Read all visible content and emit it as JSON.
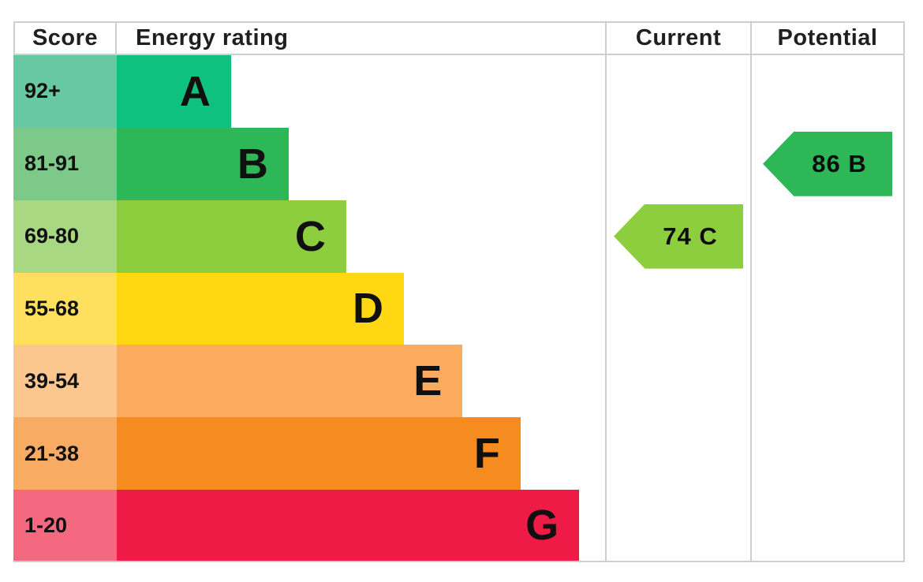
{
  "header": {
    "score": "Score",
    "energy_rating": "Energy rating",
    "current": "Current",
    "potential": "Potential"
  },
  "chart_data": {
    "type": "bar",
    "title": "EPC energy efficiency rating chart",
    "orientation": "horizontal",
    "columns": [
      "Score",
      "Energy rating",
      "Current",
      "Potential"
    ],
    "bands": [
      {
        "letter": "A",
        "range": "92+",
        "color": "#0ec17e",
        "tint": "#67c8a3",
        "bar_width_pct": 23.4
      },
      {
        "letter": "B",
        "range": "81-91",
        "color": "#2db757",
        "tint": "#7cc98a",
        "bar_width_pct": 35.2
      },
      {
        "letter": "C",
        "range": "69-80",
        "color": "#8dce3f",
        "tint": "#a9d883",
        "bar_width_pct": 47.0
      },
      {
        "letter": "D",
        "range": "55-68",
        "color": "#ffd712",
        "tint": "#ffe05e",
        "bar_width_pct": 58.8
      },
      {
        "letter": "E",
        "range": "39-54",
        "color": "#fbaa5e",
        "tint": "#fcc78f",
        "bar_width_pct": 70.8
      },
      {
        "letter": "F",
        "range": "21-38",
        "color": "#f68b1f",
        "tint": "#f8ab62",
        "bar_width_pct": 82.7
      },
      {
        "letter": "G",
        "range": "1-20",
        "color": "#ed1b45",
        "tint": "#f4697f",
        "bar_width_pct": 94.7
      }
    ],
    "current": {
      "value": 74,
      "band": "C",
      "label": "74 C",
      "color": "#8dce3f",
      "band_index": 2
    },
    "potential": {
      "value": 86,
      "band": "B",
      "label": "86 B",
      "color": "#2db757",
      "band_index": 1
    }
  },
  "colors": {
    "border": "#cfcfcf",
    "background": "#ffffff",
    "text": "#111111"
  }
}
